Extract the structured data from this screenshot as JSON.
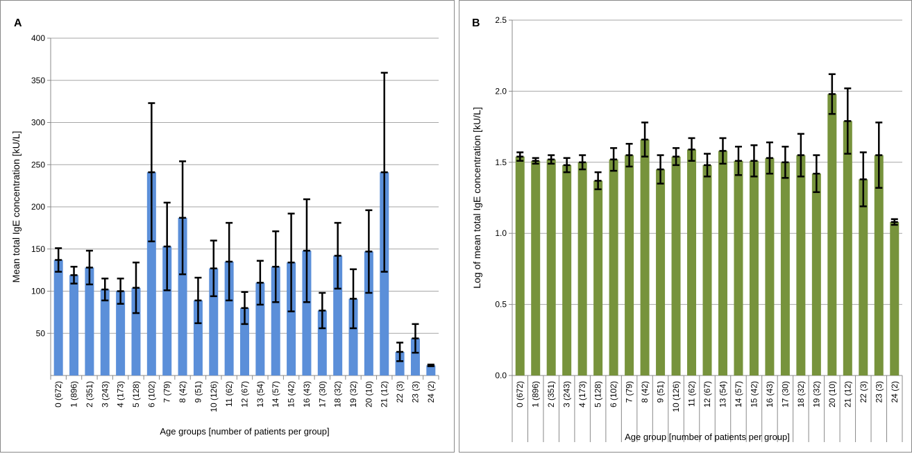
{
  "chart_data": [
    {
      "type": "bar",
      "panel": "A",
      "ylabel": "Mean total IgE concentration [kU/L]",
      "xlabel": "Age groups [number of patients per group]",
      "categories": [
        "0 (672)",
        "1 (896)",
        "2 (351)",
        "3 (243)",
        "4 (173)",
        "5 (128)",
        "6 (102)",
        "7 (79)",
        "8 (42)",
        "9 (51)",
        "10 (126)",
        "11 (62)",
        "12 (67)",
        "13 (54)",
        "14 (57)",
        "15 (42)",
        "16 (43)",
        "17 (30)",
        "18 (32)",
        "19 (32)",
        "20 (10)",
        "21 (12)",
        "22 (3)",
        "23 (3)",
        "24 (2)"
      ],
      "values": [
        137,
        119,
        128,
        102,
        100,
        104,
        241,
        153,
        187,
        89,
        127,
        135,
        80,
        110,
        129,
        134,
        148,
        77,
        142,
        91,
        147,
        241,
        28,
        44,
        12
      ],
      "errors": [
        14,
        10,
        20,
        13,
        15,
        30,
        82,
        52,
        67,
        27,
        33,
        46,
        19,
        26,
        42,
        58,
        61,
        21,
        39,
        35,
        49,
        118,
        11,
        17,
        1
      ],
      "color": "#5b8fd9",
      "ylim": [
        0,
        400
      ],
      "yticks": [
        50,
        100,
        150,
        200,
        250,
        300,
        350,
        400
      ],
      "grid": true
    },
    {
      "type": "bar",
      "panel": "B",
      "ylabel": "Log of mean total IgE concentration [kU/L]",
      "xlabel": "Age group [number of patients per group]",
      "categories": [
        "0 (672)",
        "1 (896)",
        "2 (351)",
        "3 (243)",
        "4 (173)",
        "5 (128)",
        "6 (102)",
        "7 (79)",
        "8 (42)",
        "9 (51)",
        "10 (126)",
        "11 (62)",
        "12 (67)",
        "13 (54)",
        "14 (57)",
        "15 (42)",
        "16 (43)",
        "17 (30)",
        "18 (32)",
        "19 (32)",
        "20 (10)",
        "21 (12)",
        "22 (3)",
        "23 (3)",
        "24 (2)"
      ],
      "values": [
        1.54,
        1.51,
        1.52,
        1.48,
        1.5,
        1.37,
        1.52,
        1.55,
        1.66,
        1.45,
        1.54,
        1.59,
        1.48,
        1.58,
        1.51,
        1.51,
        1.53,
        1.5,
        1.55,
        1.42,
        1.98,
        1.79,
        1.38,
        1.55,
        1.08
      ],
      "errors": [
        0.03,
        0.02,
        0.03,
        0.05,
        0.05,
        0.06,
        0.08,
        0.08,
        0.12,
        0.1,
        0.06,
        0.08,
        0.08,
        0.09,
        0.1,
        0.11,
        0.11,
        0.11,
        0.15,
        0.13,
        0.14,
        0.23,
        0.19,
        0.23,
        0.02
      ],
      "color": "#77933c",
      "ylim": [
        0,
        2.5
      ],
      "yticks": [
        {
          "value": 0,
          "label": "0.0"
        },
        0.5,
        {
          "value": 1,
          "label": "1.0"
        },
        1.5,
        {
          "value": 2,
          "label": "2.0"
        },
        2.5
      ],
      "grid": true
    }
  ]
}
